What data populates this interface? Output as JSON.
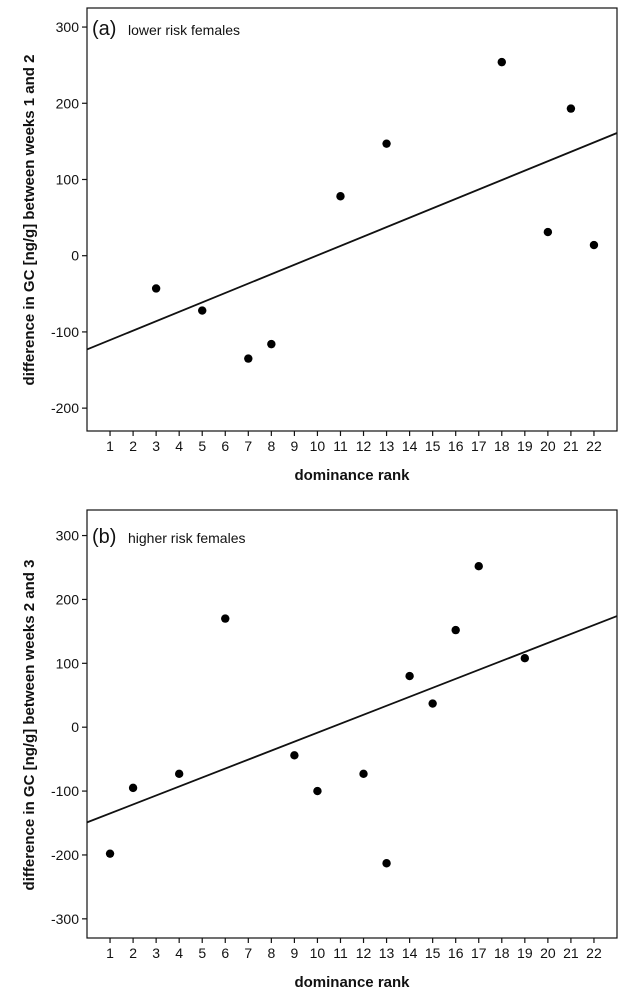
{
  "chart_data": [
    {
      "type": "scatter",
      "panel_label": "(a)",
      "title": "lower risk females",
      "xlabel": "dominance rank",
      "ylabel": "difference in GC [ng/g] between weeks 1 and 2",
      "x_ticks": [
        "1",
        "2",
        "3",
        "4",
        "5",
        "6",
        "7",
        "8",
        "9",
        "10",
        "11",
        "12",
        "13",
        "14",
        "15",
        "16",
        "17",
        "18",
        "19",
        "20",
        "21",
        "22"
      ],
      "y_ticks": [
        "300",
        "200",
        "100",
        "0",
        "-100",
        "-200"
      ],
      "y_tick_values": [
        300,
        200,
        100,
        0,
        -100,
        -200
      ],
      "xlim": [
        0,
        23
      ],
      "ylim": [
        -230,
        325
      ],
      "grid": false,
      "series": [
        {
          "points": [
            {
              "x": 3,
              "y": -43
            },
            {
              "x": 5,
              "y": -72
            },
            {
              "x": 7,
              "y": -135
            },
            {
              "x": 8,
              "y": -116
            },
            {
              "x": 11,
              "y": 78
            },
            {
              "x": 13,
              "y": 147
            },
            {
              "x": 18,
              "y": 254
            },
            {
              "x": 20,
              "y": 31
            },
            {
              "x": 21,
              "y": 193
            },
            {
              "x": 22,
              "y": 14
            }
          ]
        }
      ],
      "regression_line": {
        "x": [
          0,
          23
        ],
        "y": [
          -123,
          161
        ]
      }
    },
    {
      "type": "scatter",
      "panel_label": "(b)",
      "title": "higher risk females",
      "xlabel": "dominance rank",
      "ylabel": "difference in GC [ng/g] between weeks 2 and 3",
      "x_ticks": [
        "1",
        "2",
        "3",
        "4",
        "5",
        "6",
        "7",
        "8",
        "9",
        "10",
        "11",
        "12",
        "13",
        "14",
        "15",
        "16",
        "17",
        "18",
        "19",
        "20",
        "21",
        "22"
      ],
      "y_ticks": [
        "300",
        "200",
        "100",
        "0",
        "-100",
        "-200",
        "-300"
      ],
      "y_tick_values": [
        300,
        200,
        100,
        0,
        -100,
        -200,
        -300
      ],
      "xlim": [
        0,
        23
      ],
      "ylim": [
        -330,
        340
      ],
      "grid": false,
      "series": [
        {
          "points": [
            {
              "x": 1,
              "y": -198
            },
            {
              "x": 2,
              "y": -95
            },
            {
              "x": 4,
              "y": -73
            },
            {
              "x": 6,
              "y": 170
            },
            {
              "x": 9,
              "y": -44
            },
            {
              "x": 10,
              "y": -100
            },
            {
              "x": 12,
              "y": -73
            },
            {
              "x": 13,
              "y": -213
            },
            {
              "x": 14,
              "y": 80
            },
            {
              "x": 15,
              "y": 37
            },
            {
              "x": 16,
              "y": 152
            },
            {
              "x": 17,
              "y": 252
            },
            {
              "x": 19,
              "y": 108
            }
          ]
        }
      ],
      "regression_line": {
        "x": [
          0,
          23
        ],
        "y": [
          -149,
          174
        ]
      }
    }
  ]
}
